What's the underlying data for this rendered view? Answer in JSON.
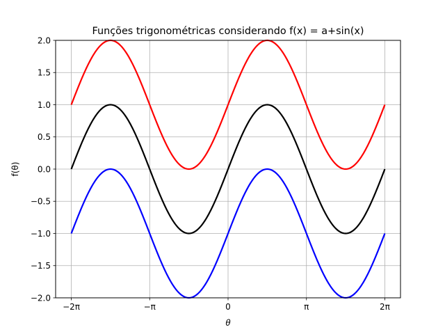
{
  "chart_data": {
    "type": "line",
    "title": "Funções trigonométricas considerando f(x) = a+sin(x)",
    "xlabel": "θ",
    "ylabel": "f(θ)",
    "xlim": [
      -6.2832,
      6.2832
    ],
    "ylim": [
      -2.0,
      2.0
    ],
    "grid": true,
    "x_ticks": [
      {
        "value": -6.283185307,
        "label": "−2π"
      },
      {
        "value": -3.141592654,
        "label": "−π"
      },
      {
        "value": 0,
        "label": "0"
      },
      {
        "value": 3.141592654,
        "label": "π"
      },
      {
        "value": 6.283185307,
        "label": "2π"
      }
    ],
    "y_ticks": [
      {
        "value": -2.0,
        "label": "−2.0"
      },
      {
        "value": -1.5,
        "label": "−1.5"
      },
      {
        "value": -1.0,
        "label": "−1.0"
      },
      {
        "value": -0.5,
        "label": "−0.5"
      },
      {
        "value": 0.0,
        "label": "0.0"
      },
      {
        "value": 0.5,
        "label": "0.5"
      },
      {
        "value": 1.0,
        "label": "1.0"
      },
      {
        "value": 1.5,
        "label": "1.5"
      },
      {
        "value": 2.0,
        "label": "2.0"
      }
    ],
    "x": [
      -6.2832,
      -5.4978,
      -4.7124,
      -3.927,
      -3.1416,
      -2.3562,
      -1.5708,
      -0.7854,
      0,
      0.7854,
      1.5708,
      2.3562,
      3.1416,
      3.927,
      4.7124,
      5.4978,
      6.2832
    ],
    "series": [
      {
        "color": "#ff0000",
        "offset": 1,
        "values": [
          1.0,
          1.7071,
          2.0,
          1.7071,
          1.0,
          0.2929,
          0.0,
          0.2929,
          1.0,
          1.7071,
          2.0,
          1.7071,
          1.0,
          0.2929,
          0.0,
          0.2929,
          1.0
        ]
      },
      {
        "color": "#000000",
        "offset": 0,
        "values": [
          0.0,
          0.7071,
          1.0,
          0.7071,
          0.0,
          -0.7071,
          -1.0,
          -0.7071,
          0.0,
          0.7071,
          1.0,
          0.7071,
          0.0,
          -0.7071,
          -1.0,
          -0.7071,
          0.0
        ]
      },
      {
        "color": "#0000ff",
        "offset": -1,
        "values": [
          -1.0,
          -0.2929,
          0.0,
          -0.2929,
          -1.0,
          -1.7071,
          -2.0,
          -1.7071,
          -1.0,
          -0.2929,
          0.0,
          -0.2929,
          -1.0,
          -1.7071,
          -2.0,
          -1.7071,
          -1.0
        ]
      }
    ]
  }
}
